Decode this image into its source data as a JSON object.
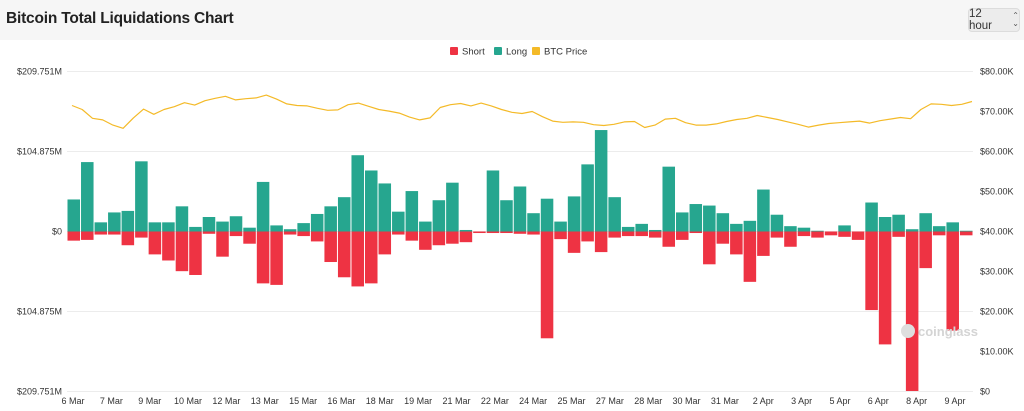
{
  "header": {
    "title": "Bitcoin Total Liquidations Chart",
    "interval_label": "12 hour"
  },
  "watermark": "coinglass",
  "chart_data": {
    "type": "bar",
    "title": "Bitcoin Total Liquidations Chart",
    "colors": {
      "Short": "#ee3343",
      "Long": "#26a68f",
      "BTC Price": "#f4ba28"
    },
    "legend": [
      "Short",
      "Long",
      "BTC Price"
    ],
    "y_left": {
      "ticks": [
        "$209.751M",
        "$104.875M",
        "$0",
        "$104.875M",
        "$209.751M"
      ],
      "range": [
        -209.751,
        209.751
      ],
      "unit": "M USD"
    },
    "y_right": {
      "ticks": [
        "$80.00K",
        "$70.00K",
        "$60.00K",
        "$50.00K",
        "$40.00K",
        "$30.00K",
        "$20.00K",
        "$10.00K",
        "$0"
      ],
      "range": [
        0,
        80
      ],
      "unit": "K USD"
    },
    "x_labels": [
      "6 Mar",
      "7 Mar",
      "9 Mar",
      "10 Mar",
      "12 Mar",
      "13 Mar",
      "15 Mar",
      "16 Mar",
      "18 Mar",
      "19 Mar",
      "21 Mar",
      "22 Mar",
      "24 Mar",
      "25 Mar",
      "27 Mar",
      "28 Mar",
      "30 Mar",
      "31 Mar",
      "2 Apr",
      "3 Apr",
      "5 Apr",
      "6 Apr",
      "8 Apr",
      "9 Apr"
    ],
    "long_values": [
      42,
      91,
      12,
      25,
      27,
      92,
      12,
      12,
      33,
      6,
      19,
      13,
      20,
      5,
      65,
      8,
      3,
      11,
      23,
      33,
      45,
      100,
      80,
      63,
      26,
      53,
      13,
      41,
      64,
      2,
      0,
      80,
      41,
      59,
      24,
      43,
      13,
      46,
      88,
      133,
      45,
      6,
      10,
      2,
      85,
      25,
      36,
      34,
      24,
      10,
      14,
      55,
      22,
      7,
      5,
      1,
      0,
      8,
      0,
      38,
      19,
      22,
      3,
      24,
      7,
      12,
      1
    ],
    "short_values": [
      12,
      11,
      4,
      4,
      18,
      8,
      30,
      38,
      52,
      57,
      3,
      33,
      6,
      16,
      68,
      70,
      4,
      6,
      13,
      40,
      60,
      72,
      68,
      30,
      4,
      12,
      24,
      18,
      16,
      14,
      2,
      2,
      2,
      3,
      4,
      140,
      10,
      28,
      13,
      27,
      8,
      6,
      6,
      8,
      20,
      11,
      2,
      43,
      16,
      30,
      66,
      32,
      8,
      20,
      6,
      8,
      5,
      7,
      11,
      103,
      148,
      7,
      215,
      48,
      5,
      130,
      5
    ],
    "btc_price_k": [
      71.5,
      70.5,
      68.3,
      67.9,
      66.6,
      65.8,
      68.4,
      70.6,
      69.3,
      70.5,
      71.2,
      72.2,
      71.6,
      72.7,
      73.3,
      73.8,
      72.9,
      73.2,
      73.4,
      74.1,
      73.1,
      71.9,
      71.5,
      71.4,
      70.8,
      70.3,
      70.4,
      71.7,
      72.1,
      71.3,
      70.5,
      70.1,
      69.6,
      68.6,
      67.9,
      68.4,
      71.0,
      71.7,
      72.0,
      71.4,
      72.1,
      71.4,
      70.5,
      69.8,
      69.5,
      70.0,
      68.7,
      67.6,
      67.3,
      67.4,
      67.3,
      66.7,
      66.5,
      66.8,
      67.4,
      67.5,
      66.0,
      66.6,
      68.1,
      68.3,
      67.2,
      66.6,
      66.6,
      66.9,
      67.5,
      68.0,
      68.3,
      69.0,
      68.5,
      68.0,
      67.4,
      66.8,
      66.1,
      66.6,
      67.0,
      67.2,
      67.4,
      67.6,
      67.1,
      67.7,
      68.1,
      68.5,
      68.2,
      70.5,
      71.9,
      71.8,
      71.5,
      71.8,
      72.5
    ]
  }
}
